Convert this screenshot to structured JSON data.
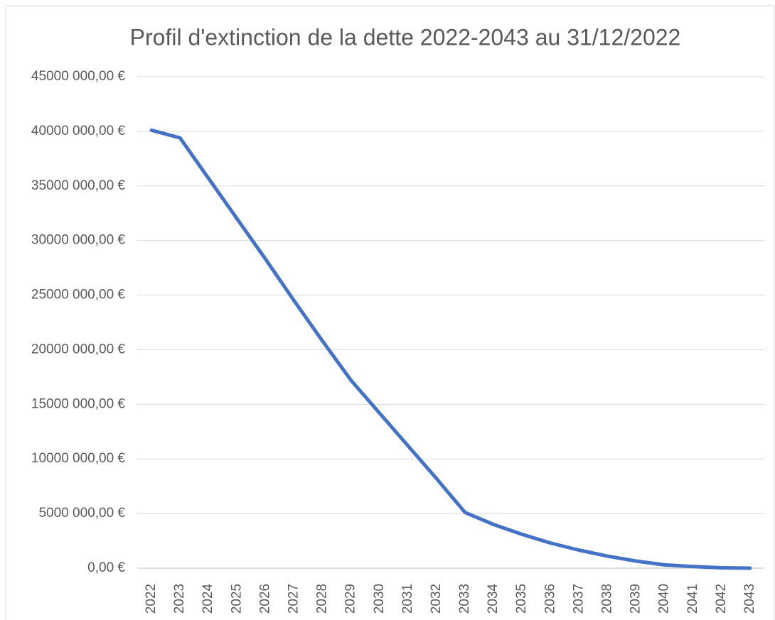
{
  "chart_data": {
    "type": "line",
    "title": "Profil d'extinction de la dette 2022-2043  au 31/12/2022",
    "categories": [
      "2022",
      "2023",
      "2024",
      "2025",
      "2026",
      "2027",
      "2028",
      "2029",
      "2030",
      "2031",
      "2032",
      "2033",
      "2034",
      "2035",
      "2036",
      "2037",
      "2038",
      "2039",
      "2040",
      "2041",
      "2042",
      "2043"
    ],
    "series": [
      {
        "color": "#4472c4",
        "values": [
          40100000,
          39400000,
          35700000,
          32000000,
          28300000,
          24500000,
          20800000,
          17200000,
          14200000,
          11200000,
          8200000,
          5100000,
          4000000,
          3100000,
          2300000,
          1650000,
          1100000,
          650000,
          300000,
          150000,
          30000,
          0
        ]
      }
    ],
    "ylim": [
      0,
      45000000
    ],
    "yticks": [
      {
        "value": 0,
        "label": "0,00 €"
      },
      {
        "value": 5000000,
        "label": "5000 000,00 €"
      },
      {
        "value": 10000000,
        "label": "10000 000,00 €"
      },
      {
        "value": 15000000,
        "label": "15000 000,00 €"
      },
      {
        "value": 20000000,
        "label": "20000 000,00 €"
      },
      {
        "value": 25000000,
        "label": "25000 000,00 €"
      },
      {
        "value": 30000000,
        "label": "30000 000,00 €"
      },
      {
        "value": 35000000,
        "label": "35000 000,00 €"
      },
      {
        "value": 40000000,
        "label": "40000 000,00 €"
      },
      {
        "value": 45000000,
        "label": "45000 000,00 €"
      }
    ],
    "grid": true
  }
}
